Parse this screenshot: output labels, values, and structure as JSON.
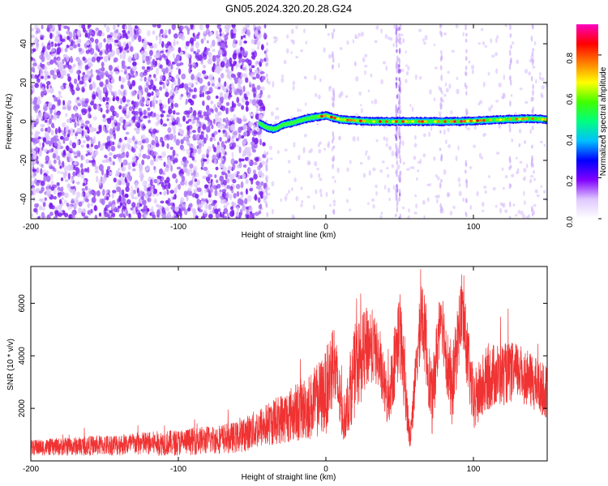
{
  "chart_data": [
    {
      "type": "heatmap",
      "title": "GN05.2024.320.20.28.G24",
      "xlabel": "Height of straight line (km)",
      "ylabel": "Frequency (Hz)",
      "xlim": [
        -200,
        150
      ],
      "ylim": [
        -50,
        50
      ],
      "xticks": [
        -200,
        -100,
        0,
        100
      ],
      "yticks": [
        -40,
        -20,
        0,
        20,
        40
      ],
      "colorbar": {
        "label": "Normalized spectral amplitude",
        "range": [
          0.0,
          0.95
        ],
        "ticks": [
          0.0,
          0.2,
          0.4,
          0.6,
          0.8
        ],
        "colormap": [
          "#ffffff",
          "#e0c8ff",
          "#8000ff",
          "#0000ff",
          "#00c0ff",
          "#00ff80",
          "#40ff00",
          "#ffff00",
          "#ff8000",
          "#ff0000",
          "#ff00c0"
        ]
      },
      "noise_region": {
        "x": [
          -200,
          -45
        ],
        "peak_frequency": null
      },
      "ridge": [
        {
          "x": -45,
          "f": -1
        },
        {
          "x": -40,
          "f": -3
        },
        {
          "x": -35,
          "f": -4
        },
        {
          "x": -30,
          "f": -2
        },
        {
          "x": -20,
          "f": 0
        },
        {
          "x": -10,
          "f": 2
        },
        {
          "x": 0,
          "f": 3
        },
        {
          "x": 10,
          "f": 1
        },
        {
          "x": 30,
          "f": 0
        },
        {
          "x": 60,
          "f": 0
        },
        {
          "x": 90,
          "f": 0
        },
        {
          "x": 120,
          "f": 1
        },
        {
          "x": 140,
          "f": 1.5
        },
        {
          "x": 150,
          "f": 1
        }
      ],
      "ridge_peak_amplitude": 0.9,
      "vertical_artifacts_x": [
        -40,
        5,
        48,
        50,
        78,
        95,
        125,
        140
      ]
    },
    {
      "type": "line",
      "xlabel": "Height of straight line (km)",
      "ylabel": "SNR (10 * v/v)",
      "xlim": [
        -200,
        150
      ],
      "ylim": [
        0,
        7400
      ],
      "xticks": [
        -200,
        -100,
        0,
        100
      ],
      "yticks": [
        2000,
        4000,
        6000
      ],
      "color": "#f03232",
      "envelope": [
        {
          "x": -200,
          "mean": 500,
          "amp": 300
        },
        {
          "x": -150,
          "mean": 600,
          "amp": 400
        },
        {
          "x": -100,
          "mean": 700,
          "amp": 500
        },
        {
          "x": -60,
          "mean": 900,
          "amp": 600
        },
        {
          "x": -35,
          "mean": 1500,
          "amp": 900
        },
        {
          "x": -10,
          "mean": 2100,
          "amp": 1300
        },
        {
          "x": 0,
          "mean": 2600,
          "amp": 1600
        },
        {
          "x": 5,
          "mean": 3800,
          "amp": 1800
        },
        {
          "x": 12,
          "mean": 1500,
          "amp": 800
        },
        {
          "x": 20,
          "mean": 3500,
          "amp": 1800
        },
        {
          "x": 30,
          "mean": 4500,
          "amp": 1500
        },
        {
          "x": 35,
          "mean": 4000,
          "amp": 1200
        },
        {
          "x": 42,
          "mean": 2200,
          "amp": 1000
        },
        {
          "x": 50,
          "mean": 5000,
          "amp": 1800
        },
        {
          "x": 57,
          "mean": 800,
          "amp": 500
        },
        {
          "x": 65,
          "mean": 5800,
          "amp": 1500
        },
        {
          "x": 72,
          "mean": 2200,
          "amp": 1300
        },
        {
          "x": 78,
          "mean": 5800,
          "amp": 1300
        },
        {
          "x": 85,
          "mean": 2500,
          "amp": 1400
        },
        {
          "x": 92,
          "mean": 5800,
          "amp": 1500
        },
        {
          "x": 100,
          "mean": 2200,
          "amp": 1200
        },
        {
          "x": 110,
          "mean": 3200,
          "amp": 1300
        },
        {
          "x": 130,
          "mean": 3400,
          "amp": 1100
        },
        {
          "x": 150,
          "mean": 2600,
          "amp": 1000
        }
      ],
      "max": 7300
    }
  ]
}
